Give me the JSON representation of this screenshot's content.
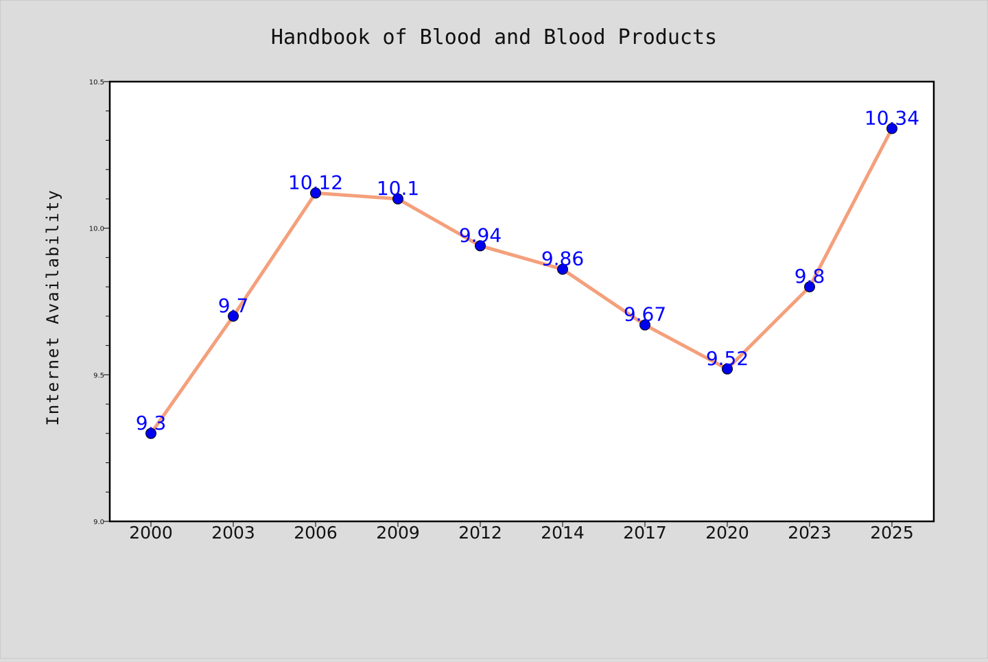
{
  "chart_data": {
    "type": "line",
    "title": "Handbook of Blood and Blood Products",
    "xlabel": "",
    "ylabel": "Internet Availability",
    "categories": [
      "2000",
      "2003",
      "2006",
      "2009",
      "2012",
      "2014",
      "2017",
      "2020",
      "2023",
      "2025"
    ],
    "series": [
      {
        "values": [
          9.3,
          9.7,
          10.12,
          10.1,
          9.94,
          9.86,
          9.67,
          9.52,
          9.8,
          10.34
        ],
        "data_labels": [
          "9.3",
          "9.7",
          "10.12",
          "10.1",
          "9.94",
          "9.86",
          "9.67",
          "9.52",
          "9.8",
          "10.34"
        ],
        "line_color": "#f4a07c",
        "marker_color": "#0000ee",
        "label_color": "#0000ff"
      }
    ],
    "ylim": [
      9.0,
      10.5
    ],
    "yticks": [
      "9.0",
      "9.5",
      "10.0",
      "10.5"
    ],
    "grid": false,
    "legend": "none"
  },
  "colors": {
    "background": "#dcdcdc",
    "plot_area": "#ffffff",
    "axis": "#000000"
  }
}
